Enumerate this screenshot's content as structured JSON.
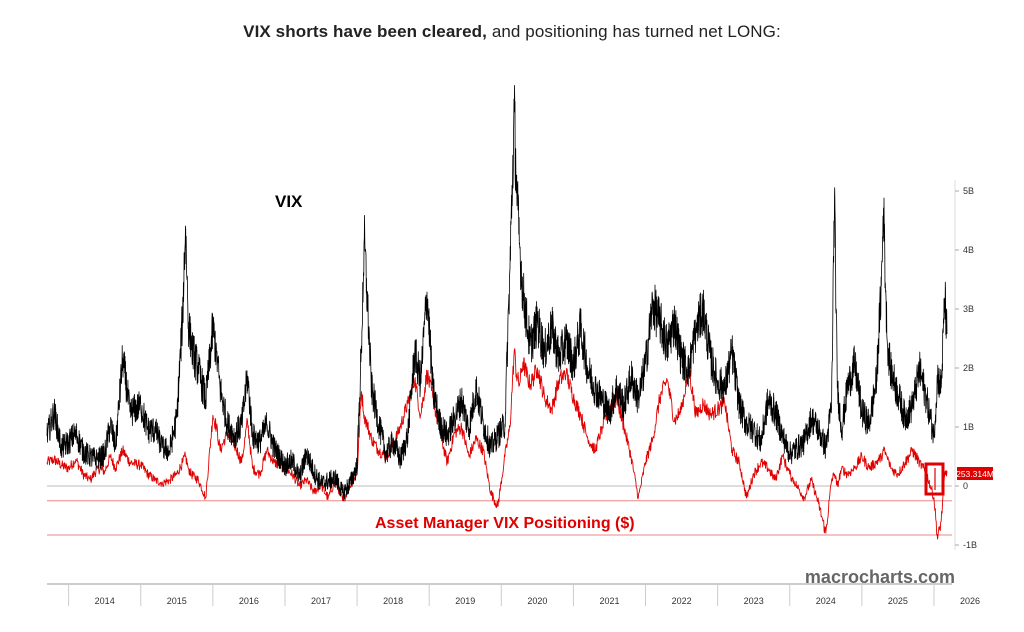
{
  "title": {
    "bold": "VIX shorts have been cleared,",
    "rest": " and positioning has turned net LONG:"
  },
  "watermark": "macrocharts.com",
  "colors": {
    "vix": "#000000",
    "positioning": "#e00000",
    "level_lines": "#e88888",
    "zero_line": "#bbbbbb",
    "axis": "#999999",
    "label_box": "#e00000"
  },
  "chart_data": {
    "type": "line",
    "title": "VIX shorts have been cleared, and positioning has turned net LONG:",
    "xlabel": "",
    "ylabel": "",
    "x_ticks": [
      "2014",
      "2015",
      "2016",
      "2017",
      "2018",
      "2019",
      "2020",
      "2021",
      "2022",
      "2023",
      "2024",
      "2025",
      "2026"
    ],
    "xlim": [
      2013.7,
      2026.25
    ],
    "y_right_ticks": [
      "5B",
      "4B",
      "3B",
      "2B",
      "1B",
      "0",
      "-1B"
    ],
    "ylim_right": [
      -1.0,
      5.0
    ],
    "y_right_unit": "B USD",
    "grid": false,
    "legend": "none",
    "annotations": [
      {
        "text": "VIX",
        "series": "VIX"
      },
      {
        "text": "Asset Manager VIX Positioning ($)",
        "series": "Asset Manager VIX Positioning ($)"
      },
      {
        "text": "253.314M",
        "type": "last-value-label"
      }
    ],
    "reference_levels_B": [
      -0.25,
      -0.83
    ],
    "series": [
      {
        "name": "VIX",
        "axis": "left-unlabeled",
        "x": [
          2013.7,
          2013.8,
          2013.9,
          2014.0,
          2014.1,
          2014.2,
          2014.3,
          2014.4,
          2014.5,
          2014.58,
          2014.65,
          2014.75,
          2014.85,
          2015.0,
          2015.1,
          2015.2,
          2015.3,
          2015.4,
          2015.5,
          2015.58,
          2015.62,
          2015.66,
          2015.7,
          2015.8,
          2015.9,
          2016.0,
          2016.05,
          2016.1,
          2016.2,
          2016.3,
          2016.4,
          2016.48,
          2016.55,
          2016.65,
          2016.75,
          2016.85,
          2017.0,
          2017.1,
          2017.2,
          2017.3,
          2017.4,
          2017.5,
          2017.6,
          2017.7,
          2017.8,
          2017.9,
          2018.0,
          2018.06,
          2018.1,
          2018.2,
          2018.3,
          2018.4,
          2018.5,
          2018.6,
          2018.7,
          2018.8,
          2018.88,
          2018.97,
          2019.05,
          2019.15,
          2019.25,
          2019.35,
          2019.45,
          2019.55,
          2019.65,
          2019.75,
          2019.85,
          2019.95,
          2020.05,
          2020.12,
          2020.18,
          2020.21,
          2020.25,
          2020.3,
          2020.4,
          2020.5,
          2020.6,
          2020.7,
          2020.8,
          2020.9,
          2021.0,
          2021.1,
          2021.2,
          2021.3,
          2021.4,
          2021.5,
          2021.6,
          2021.7,
          2021.8,
          2021.9,
          2022.0,
          2022.1,
          2022.2,
          2022.3,
          2022.4,
          2022.5,
          2022.6,
          2022.7,
          2022.8,
          2022.9,
          2023.0,
          2023.1,
          2023.2,
          2023.3,
          2023.4,
          2023.5,
          2023.6,
          2023.7,
          2023.8,
          2023.9,
          2024.0,
          2024.1,
          2024.2,
          2024.3,
          2024.4,
          2024.5,
          2024.58,
          2024.62,
          2024.66,
          2024.72,
          2024.8,
          2024.9,
          2025.0,
          2025.1,
          2025.2,
          2025.27,
          2025.3,
          2025.35,
          2025.4,
          2025.5,
          2025.6,
          2025.7,
          2025.8,
          2025.9,
          2026.0,
          2026.05,
          2026.1,
          2026.15,
          2026.18
        ],
        "values": [
          1.0,
          1.4,
          0.8,
          0.9,
          1.05,
          0.75,
          0.65,
          0.6,
          0.7,
          1.2,
          0.8,
          2.3,
          1.4,
          1.5,
          1.1,
          1.1,
          0.8,
          0.75,
          1.3,
          3.0,
          4.5,
          2.9,
          2.5,
          2.1,
          1.6,
          2.8,
          2.4,
          1.8,
          1.2,
          1.0,
          1.2,
          2.0,
          1.0,
          0.9,
          1.2,
          0.8,
          0.5,
          0.6,
          0.3,
          0.7,
          0.4,
          0.2,
          0.25,
          0.3,
          0.05,
          0.2,
          0.5,
          2.5,
          4.3,
          1.8,
          1.2,
          0.7,
          0.9,
          0.6,
          1.0,
          2.4,
          1.9,
          3.4,
          1.8,
          1.2,
          1.0,
          1.3,
          1.6,
          1.1,
          1.8,
          1.2,
          0.8,
          1.0,
          1.2,
          3.8,
          6.4,
          5.2,
          4.2,
          3.4,
          2.5,
          2.9,
          2.4,
          2.8,
          2.3,
          2.6,
          2.2,
          2.8,
          2.1,
          1.8,
          1.6,
          1.4,
          1.8,
          1.5,
          2.0,
          1.6,
          2.2,
          3.2,
          2.9,
          2.5,
          2.9,
          2.3,
          2.1,
          2.8,
          3.1,
          2.3,
          1.9,
          1.8,
          2.4,
          1.5,
          1.2,
          1.1,
          0.9,
          1.6,
          1.4,
          1.0,
          0.7,
          0.8,
          0.9,
          1.3,
          1.1,
          0.8,
          1.5,
          5.0,
          1.8,
          1.1,
          1.8,
          2.2,
          1.4,
          1.2,
          1.9,
          3.5,
          4.8,
          2.6,
          2.1,
          1.7,
          1.3,
          1.5,
          2.1,
          1.6,
          1.0,
          2.0,
          1.8,
          3.3,
          2.7
        ]
      },
      {
        "name": "Asset Manager VIX Positioning ($)",
        "axis": "right",
        "unit": "B USD",
        "x": [
          2013.7,
          2013.8,
          2013.9,
          2014.0,
          2014.1,
          2014.2,
          2014.3,
          2014.4,
          2014.5,
          2014.58,
          2014.65,
          2014.75,
          2014.85,
          2015.0,
          2015.1,
          2015.2,
          2015.3,
          2015.4,
          2015.5,
          2015.58,
          2015.62,
          2015.66,
          2015.7,
          2015.8,
          2015.9,
          2016.0,
          2016.05,
          2016.1,
          2016.2,
          2016.3,
          2016.4,
          2016.48,
          2016.55,
          2016.65,
          2016.75,
          2016.85,
          2017.0,
          2017.1,
          2017.2,
          2017.3,
          2017.4,
          2017.5,
          2017.6,
          2017.7,
          2017.8,
          2017.9,
          2018.0,
          2018.06,
          2018.1,
          2018.2,
          2018.3,
          2018.4,
          2018.5,
          2018.6,
          2018.7,
          2018.8,
          2018.88,
          2018.97,
          2019.05,
          2019.15,
          2019.25,
          2019.35,
          2019.45,
          2019.55,
          2019.65,
          2019.75,
          2019.85,
          2019.95,
          2020.05,
          2020.12,
          2020.18,
          2020.21,
          2020.25,
          2020.3,
          2020.4,
          2020.5,
          2020.6,
          2020.7,
          2020.8,
          2020.9,
          2021.0,
          2021.1,
          2021.2,
          2021.3,
          2021.4,
          2021.5,
          2021.6,
          2021.7,
          2021.8,
          2021.9,
          2022.0,
          2022.1,
          2022.2,
          2022.3,
          2022.4,
          2022.5,
          2022.6,
          2022.7,
          2022.8,
          2022.9,
          2023.0,
          2023.1,
          2023.2,
          2023.3,
          2023.4,
          2023.5,
          2023.6,
          2023.7,
          2023.8,
          2023.9,
          2024.0,
          2024.1,
          2024.2,
          2024.3,
          2024.4,
          2024.5,
          2024.58,
          2024.62,
          2024.66,
          2024.72,
          2024.8,
          2024.9,
          2025.0,
          2025.1,
          2025.2,
          2025.27,
          2025.3,
          2025.35,
          2025.4,
          2025.5,
          2025.6,
          2025.7,
          2025.8,
          2025.9,
          2026.0,
          2026.05,
          2026.1,
          2026.15,
          2026.18
        ],
        "values": [
          0.4,
          0.45,
          0.35,
          0.3,
          0.45,
          0.2,
          0.1,
          0.3,
          0.25,
          0.5,
          0.3,
          0.6,
          0.4,
          0.35,
          0.2,
          0.1,
          0.05,
          0.1,
          0.2,
          0.4,
          0.5,
          0.3,
          0.2,
          0.1,
          -0.2,
          1.2,
          1.0,
          0.6,
          0.9,
          0.7,
          0.4,
          1.1,
          0.3,
          0.2,
          0.6,
          0.4,
          0.3,
          0.2,
          0.0,
          0.1,
          -0.1,
          0.0,
          -0.2,
          0.1,
          -0.25,
          0.0,
          0.2,
          1.6,
          1.2,
          0.8,
          0.6,
          0.5,
          0.7,
          1.0,
          1.4,
          1.8,
          1.2,
          1.9,
          1.5,
          0.9,
          0.4,
          0.9,
          1.0,
          0.5,
          0.8,
          0.6,
          -0.1,
          -0.35,
          0.5,
          1.0,
          2.3,
          1.9,
          1.7,
          2.1,
          1.7,
          2.0,
          1.5,
          1.3,
          1.8,
          1.9,
          1.5,
          1.2,
          0.8,
          0.6,
          1.0,
          1.3,
          1.5,
          1.0,
          0.5,
          -0.2,
          0.4,
          0.8,
          1.5,
          1.8,
          1.1,
          1.3,
          2.0,
          1.2,
          1.4,
          1.2,
          1.3,
          1.4,
          0.6,
          0.4,
          -0.2,
          0.2,
          0.4,
          0.3,
          0.1,
          0.5,
          0.2,
          0.0,
          -0.2,
          0.1,
          -0.3,
          -0.8,
          0.1,
          0.2,
          0.0,
          0.3,
          0.2,
          0.3,
          0.5,
          0.3,
          0.4,
          0.5,
          0.6,
          0.5,
          0.3,
          0.2,
          0.4,
          0.6,
          0.4,
          0.2,
          -0.2,
          -0.9,
          -0.6,
          0.2,
          0.253
        ]
      }
    ]
  }
}
